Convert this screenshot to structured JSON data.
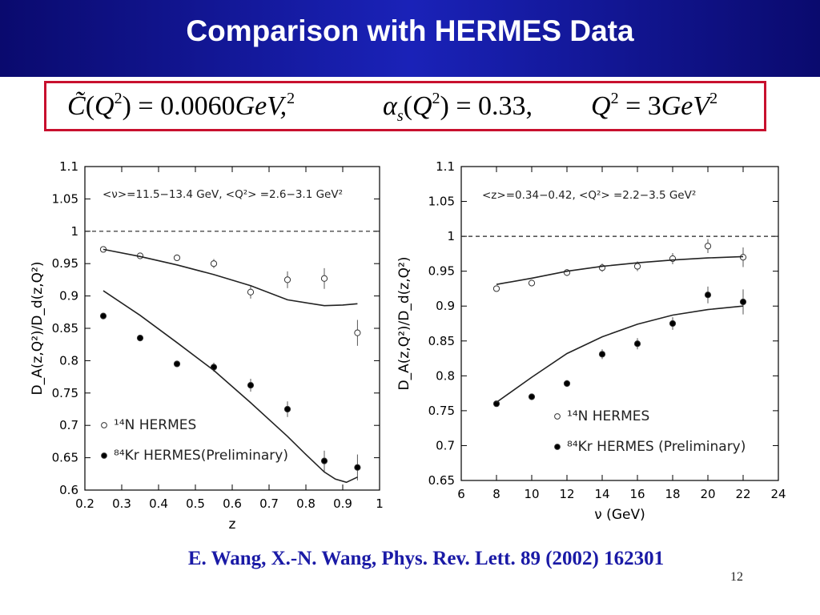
{
  "slide": {
    "title": "Comparison with HERMES Data",
    "citation": "E. Wang, X.-N. Wang, Phys. Rev. Lett. 89 (2002) 162301",
    "page_number": "12"
  },
  "formula": {
    "c_value": "0.0060",
    "c_unit": "GeV",
    "alpha_value": "0.33",
    "q2_value": "3"
  },
  "chart_data": [
    {
      "type": "scatter",
      "xlabel": "z",
      "ylabel": "D_A(z,Q²)/D_d(z,Q²)",
      "annotation": "<ν>=11.5−13.4 GeV,  <Q²> =2.6−3.1 GeV²",
      "xlim": [
        0.2,
        1.0
      ],
      "ylim": [
        0.6,
        1.1
      ],
      "x_ticks": [
        "0.2",
        "0.3",
        "0.4",
        "0.5",
        "0.6",
        "0.7",
        "0.8",
        "0.9",
        "1"
      ],
      "y_ticks": [
        "0.6",
        "0.65",
        "0.7",
        "0.75",
        "0.8",
        "0.85",
        "0.9",
        "0.95",
        "1",
        "1.05",
        "1.1"
      ],
      "reference_line": 1.0,
      "legend": [
        "¹⁴N HERMES",
        "⁸⁴Kr HERMES(Preliminary)"
      ],
      "legend_position": "bottom-left",
      "series": [
        {
          "name": "¹⁴N HERMES",
          "marker": "open-circle",
          "x": [
            0.25,
            0.35,
            0.45,
            0.55,
            0.65,
            0.75,
            0.85,
            0.94
          ],
          "y": [
            0.972,
            0.962,
            0.959,
            0.95,
            0.906,
            0.925,
            0.927,
            0.843
          ],
          "err": [
            0.004,
            0.004,
            0.005,
            0.007,
            0.01,
            0.013,
            0.016,
            0.02
          ]
        },
        {
          "name": "⁸⁴Kr HERMES(Preliminary)",
          "marker": "filled-circle",
          "x": [
            0.25,
            0.35,
            0.45,
            0.55,
            0.65,
            0.75,
            0.85,
            0.94
          ],
          "y": [
            0.869,
            0.835,
            0.795,
            0.79,
            0.762,
            0.725,
            0.645,
            0.635
          ],
          "err": [
            0.004,
            0.004,
            0.005,
            0.007,
            0.01,
            0.012,
            0.016,
            0.02
          ]
        },
        {
          "marker": "line",
          "x": [
            0.25,
            0.35,
            0.45,
            0.55,
            0.65,
            0.75,
            0.85,
            0.9,
            0.94
          ],
          "y": [
            0.972,
            0.961,
            0.948,
            0.933,
            0.916,
            0.894,
            0.885,
            0.886,
            0.888
          ]
        },
        {
          "marker": "line",
          "x": [
            0.25,
            0.35,
            0.45,
            0.55,
            0.65,
            0.75,
            0.8,
            0.85,
            0.88,
            0.91,
            0.94
          ],
          "y": [
            0.908,
            0.87,
            0.828,
            0.785,
            0.735,
            0.683,
            0.655,
            0.628,
            0.617,
            0.612,
            0.62
          ]
        }
      ]
    },
    {
      "type": "scatter",
      "xlabel": "ν (GeV)",
      "ylabel": "D_A(z,Q²)/D_d(z,Q²)",
      "annotation": "<z>=0.34−0.42,  <Q²> =2.2−3.5 GeV²",
      "xlim": [
        6,
        24
      ],
      "ylim": [
        0.65,
        1.1
      ],
      "x_ticks": [
        "6",
        "8",
        "10",
        "12",
        "14",
        "16",
        "18",
        "20",
        "22",
        "24"
      ],
      "y_ticks": [
        "0.65",
        "0.7",
        "0.75",
        "0.8",
        "0.85",
        "0.9",
        "0.95",
        "1",
        "1.05",
        "1.1"
      ],
      "reference_line": 1.0,
      "legend": [
        "¹⁴N HERMES",
        "⁸⁴Kr HERMES (Preliminary)"
      ],
      "legend_position": "bottom-right",
      "series": [
        {
          "name": "¹⁴N HERMES",
          "marker": "open-circle",
          "x": [
            8,
            10,
            12,
            14,
            16,
            18,
            20,
            22
          ],
          "y": [
            0.925,
            0.933,
            0.948,
            0.955,
            0.957,
            0.968,
            0.986,
            0.97
          ],
          "err": [
            0.004,
            0.004,
            0.005,
            0.006,
            0.007,
            0.008,
            0.01,
            0.014
          ]
        },
        {
          "name": "⁸⁴Kr HERMES (Preliminary)",
          "marker": "filled-circle",
          "x": [
            8,
            10,
            12,
            14,
            16,
            18,
            20,
            22
          ],
          "y": [
            0.76,
            0.77,
            0.789,
            0.831,
            0.846,
            0.875,
            0.916,
            0.906
          ],
          "err": [
            0.004,
            0.004,
            0.005,
            0.007,
            0.008,
            0.009,
            0.012,
            0.018
          ]
        },
        {
          "marker": "line",
          "x": [
            8,
            10,
            12,
            14,
            16,
            18,
            20,
            22
          ],
          "y": [
            0.931,
            0.94,
            0.95,
            0.957,
            0.962,
            0.966,
            0.969,
            0.971
          ]
        },
        {
          "marker": "line",
          "x": [
            8,
            10,
            12,
            14,
            16,
            18,
            20,
            22
          ],
          "y": [
            0.762,
            0.798,
            0.832,
            0.856,
            0.874,
            0.887,
            0.895,
            0.9
          ]
        }
      ]
    }
  ]
}
